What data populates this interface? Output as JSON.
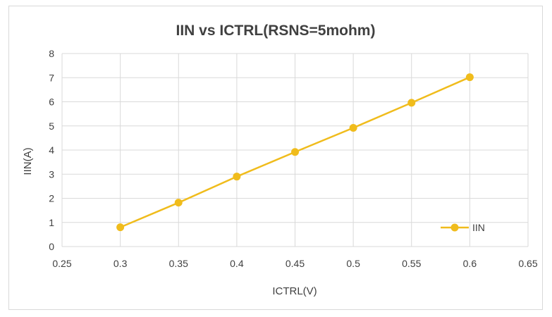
{
  "chart_data": {
    "type": "scatter",
    "title": "IIN vs ICTRL(RSNS=5mohm)",
    "xlabel": "ICTRL(V)",
    "ylabel": "IIN(A)",
    "xlim": [
      0.25,
      0.65
    ],
    "ylim": [
      0,
      8
    ],
    "x_ticks": [
      "0.25",
      "0.3",
      "0.35",
      "0.4",
      "0.45",
      "0.5",
      "0.55",
      "0.6",
      "0.65"
    ],
    "y_ticks": [
      "0",
      "1",
      "2",
      "3",
      "4",
      "5",
      "6",
      "7",
      "8"
    ],
    "grid": true,
    "legend_position": "right",
    "series": [
      {
        "name": "IIN",
        "color": "#f0bc1c",
        "x": [
          0.3,
          0.35,
          0.4,
          0.45,
          0.5,
          0.55,
          0.6
        ],
        "y": [
          0.8,
          1.82,
          2.9,
          3.92,
          4.92,
          5.96,
          7.02
        ]
      }
    ]
  }
}
